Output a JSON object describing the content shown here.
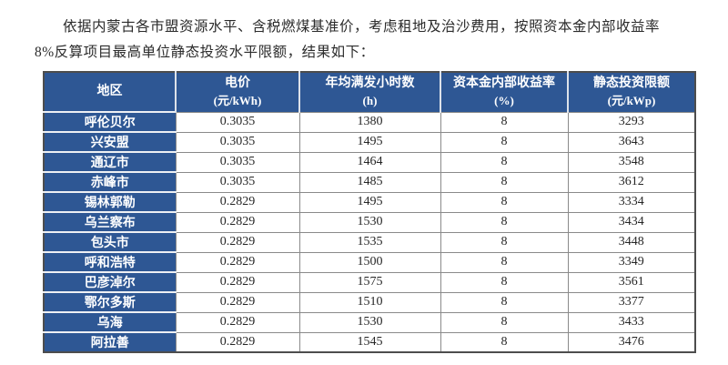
{
  "intro": {
    "text": "依据内蒙古各市盟资源水平、含税燃煤基准价，考虑租地及治沙费用，按照资本金内部收益率8%反算项目最高单位静态投资水平限额，结果如下："
  },
  "table": {
    "columns": [
      {
        "label": "地区",
        "unit": ""
      },
      {
        "label": "电价",
        "unit": "(元/kWh)"
      },
      {
        "label": "年均满发小时数",
        "unit": "(h)"
      },
      {
        "label": "资本金内部收益率",
        "unit": "(%)"
      },
      {
        "label": "静态投资限额",
        "unit": "(元/kWp)"
      }
    ],
    "rows": [
      [
        "呼伦贝尔",
        "0.3035",
        "1380",
        "8",
        "3293"
      ],
      [
        "兴安盟",
        "0.3035",
        "1495",
        "8",
        "3643"
      ],
      [
        "通辽市",
        "0.3035",
        "1464",
        "8",
        "3548"
      ],
      [
        "赤峰市",
        "0.3035",
        "1485",
        "8",
        "3612"
      ],
      [
        "锡林郭勒",
        "0.2829",
        "1495",
        "8",
        "3334"
      ],
      [
        "乌兰察布",
        "0.2829",
        "1530",
        "8",
        "3434"
      ],
      [
        "包头市",
        "0.2829",
        "1535",
        "8",
        "3448"
      ],
      [
        "呼和浩特",
        "0.2829",
        "1500",
        "8",
        "3349"
      ],
      [
        "巴彦淖尔",
        "0.2829",
        "1575",
        "8",
        "3561"
      ],
      [
        "鄂尔多斯",
        "0.2829",
        "1510",
        "8",
        "3377"
      ],
      [
        "乌海",
        "0.2829",
        "1530",
        "8",
        "3433"
      ],
      [
        "阿拉善",
        "0.2829",
        "1545",
        "8",
        "3476"
      ]
    ]
  },
  "colors": {
    "table_blue": "#2e5794",
    "data_border": "#8a8a8a",
    "outer_border": "#4d4d4d",
    "text": "#262626"
  }
}
